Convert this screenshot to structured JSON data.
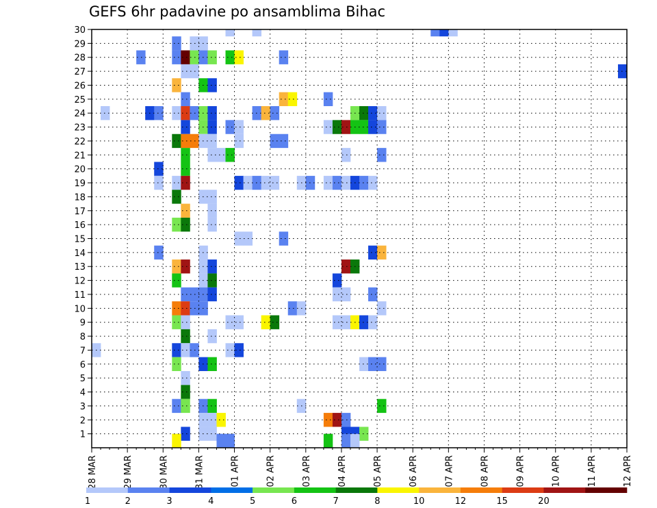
{
  "chart_data": {
    "type": "heatmap",
    "title": "GEFS 6hr padavine po ansamblima Bihac",
    "xlabel": "",
    "ylabel": "",
    "x_ticks": [
      "28 MAR",
      "29 MAR",
      "30 MAR",
      "31 MAR",
      "01 APR",
      "02 APR",
      "03 APR",
      "04 APR",
      "05 APR",
      "06 APR",
      "07 APR",
      "08 APR",
      "09 APR",
      "10 APR",
      "11 APR",
      "12 APR"
    ],
    "y_ticks": [
      1,
      2,
      3,
      4,
      5,
      6,
      7,
      8,
      9,
      10,
      11,
      12,
      13,
      14,
      15,
      16,
      17,
      18,
      19,
      20,
      21,
      22,
      23,
      24,
      25,
      26,
      27,
      28,
      29,
      30
    ],
    "x_range_days": [
      0,
      15
    ],
    "y_range": [
      0,
      30
    ],
    "grid": true,
    "x_step_hours": 6,
    "colorbar": {
      "labels": [
        "1",
        "2",
        "3",
        "4",
        "5",
        "6",
        "7",
        "8",
        "10",
        "12",
        "15",
        "20"
      ],
      "colors": [
        "#b4c8fa",
        "#5a82f0",
        "#1446dc",
        "#006ee6",
        "#78e650",
        "#14c314",
        "#0a780a",
        "#faf500",
        "#fab43c",
        "#f57d0a",
        "#dc3c14",
        "#a01414",
        "#640000"
      ]
    },
    "cells": [
      {
        "m": 30,
        "s": [
          [
            15,
            0
          ],
          [
            18,
            0
          ]
        ]
      },
      {
        "m": 30,
        "s": [
          [
            38,
            1
          ],
          [
            39,
            2
          ],
          [
            40,
            0
          ]
        ]
      },
      {
        "m": 29,
        "s": [
          [
            9,
            1
          ],
          [
            11,
            0
          ],
          [
            12,
            0
          ]
        ]
      },
      {
        "m": 28,
        "s": [
          [
            5,
            1
          ],
          [
            9,
            1
          ],
          [
            10,
            12
          ],
          [
            11,
            4
          ],
          [
            12,
            1
          ],
          [
            13,
            4
          ],
          [
            15,
            5
          ],
          [
            16,
            7
          ],
          [
            21,
            1
          ]
        ]
      },
      {
        "m": 27,
        "s": [
          [
            10,
            0
          ],
          [
            11,
            0
          ],
          [
            59,
            2
          ]
        ]
      },
      {
        "m": 26,
        "s": [
          [
            9,
            8
          ],
          [
            12,
            5
          ],
          [
            13,
            2
          ]
        ]
      },
      {
        "m": 25,
        "s": [
          [
            10,
            1
          ],
          [
            21,
            8
          ],
          [
            22,
            7
          ],
          [
            26,
            1
          ]
        ]
      },
      {
        "m": 24,
        "s": [
          [
            1,
            0
          ],
          [
            6,
            2
          ],
          [
            7,
            1
          ],
          [
            9,
            0
          ],
          [
            10,
            10
          ],
          [
            11,
            1
          ],
          [
            12,
            4
          ],
          [
            13,
            2
          ],
          [
            18,
            1
          ],
          [
            19,
            8
          ],
          [
            20,
            1
          ],
          [
            29,
            4
          ],
          [
            30,
            6
          ],
          [
            31,
            2
          ],
          [
            32,
            0
          ]
        ]
      },
      {
        "m": 23,
        "s": [
          [
            10,
            2
          ],
          [
            12,
            4
          ],
          [
            13,
            2
          ],
          [
            15,
            1
          ],
          [
            16,
            0
          ],
          [
            26,
            0
          ],
          [
            27,
            6
          ],
          [
            28,
            11
          ],
          [
            29,
            5
          ],
          [
            30,
            5
          ],
          [
            31,
            2
          ],
          [
            32,
            1
          ]
        ]
      },
      {
        "m": 22,
        "s": [
          [
            9,
            6
          ],
          [
            10,
            9
          ],
          [
            11,
            9
          ],
          [
            12,
            0
          ],
          [
            13,
            0
          ],
          [
            16,
            0
          ],
          [
            20,
            1
          ],
          [
            21,
            1
          ]
        ]
      },
      {
        "m": 21,
        "s": [
          [
            10,
            5
          ],
          [
            13,
            0
          ],
          [
            14,
            0
          ],
          [
            15,
            5
          ],
          [
            28,
            0
          ],
          [
            32,
            1
          ]
        ]
      },
      {
        "m": 20,
        "s": [
          [
            7,
            2
          ],
          [
            10,
            5
          ]
        ]
      },
      {
        "m": 19,
        "s": [
          [
            7,
            0
          ],
          [
            9,
            0
          ],
          [
            10,
            11
          ],
          [
            16,
            2
          ],
          [
            17,
            0
          ],
          [
            18,
            1
          ],
          [
            19,
            0
          ],
          [
            20,
            0
          ],
          [
            23,
            0
          ],
          [
            24,
            1
          ],
          [
            26,
            0
          ],
          [
            27,
            1
          ],
          [
            28,
            0
          ],
          [
            29,
            2
          ],
          [
            30,
            1
          ],
          [
            31,
            0
          ]
        ]
      },
      {
        "m": 18,
        "s": [
          [
            9,
            6
          ],
          [
            12,
            0
          ],
          [
            13,
            0
          ]
        ]
      },
      {
        "m": 17,
        "s": [
          [
            10,
            8
          ],
          [
            13,
            0
          ]
        ]
      },
      {
        "m": 16,
        "s": [
          [
            9,
            4
          ],
          [
            10,
            6
          ],
          [
            13,
            0
          ]
        ]
      },
      {
        "m": 15,
        "s": [
          [
            16,
            0
          ],
          [
            17,
            0
          ],
          [
            21,
            1
          ]
        ]
      },
      {
        "m": 14,
        "s": [
          [
            7,
            1
          ],
          [
            12,
            0
          ],
          [
            31,
            2
          ],
          [
            32,
            8
          ]
        ]
      },
      {
        "m": 13,
        "s": [
          [
            9,
            8
          ],
          [
            10,
            11
          ],
          [
            12,
            0
          ],
          [
            13,
            2
          ],
          [
            28,
            11
          ],
          [
            29,
            6
          ]
        ]
      },
      {
        "m": 12,
        "s": [
          [
            9,
            5
          ],
          [
            12,
            0
          ],
          [
            13,
            6
          ],
          [
            27,
            2
          ]
        ]
      },
      {
        "m": 11,
        "s": [
          [
            10,
            1
          ],
          [
            11,
            1
          ],
          [
            12,
            1
          ],
          [
            13,
            2
          ],
          [
            27,
            0
          ],
          [
            28,
            0
          ],
          [
            31,
            1
          ]
        ]
      },
      {
        "m": 10,
        "s": [
          [
            9,
            9
          ],
          [
            10,
            10
          ],
          [
            11,
            1
          ],
          [
            12,
            1
          ],
          [
            22,
            1
          ],
          [
            23,
            0
          ],
          [
            32,
            0
          ]
        ]
      },
      {
        "m": 9,
        "s": [
          [
            9,
            4
          ],
          [
            10,
            0
          ],
          [
            15,
            0
          ],
          [
            16,
            0
          ],
          [
            19,
            7
          ],
          [
            20,
            6
          ],
          [
            27,
            0
          ],
          [
            28,
            0
          ],
          [
            29,
            7
          ],
          [
            30,
            2
          ],
          [
            31,
            0
          ]
        ]
      },
      {
        "m": 8,
        "s": [
          [
            10,
            6
          ],
          [
            13,
            0
          ]
        ]
      },
      {
        "m": 7,
        "s": [
          [
            0,
            0
          ],
          [
            9,
            2
          ],
          [
            10,
            0
          ],
          [
            11,
            1
          ],
          [
            15,
            0
          ],
          [
            16,
            2
          ]
        ]
      },
      {
        "m": 6,
        "s": [
          [
            9,
            4
          ],
          [
            12,
            2
          ],
          [
            13,
            5
          ],
          [
            30,
            0
          ],
          [
            31,
            1
          ],
          [
            32,
            1
          ]
        ]
      },
      {
        "m": 5,
        "s": [
          [
            10,
            0
          ]
        ]
      },
      {
        "m": 4,
        "s": [
          [
            10,
            6
          ]
        ]
      },
      {
        "m": 3,
        "s": [
          [
            9,
            1
          ],
          [
            10,
            4
          ],
          [
            12,
            1
          ],
          [
            13,
            5
          ],
          [
            23,
            0
          ],
          [
            32,
            5
          ]
        ]
      },
      {
        "m": 2,
        "s": [
          [
            12,
            0
          ],
          [
            13,
            0
          ],
          [
            14,
            7
          ],
          [
            26,
            9
          ],
          [
            27,
            11
          ],
          [
            28,
            1
          ]
        ]
      },
      {
        "m": 1,
        "s": [
          [
            10,
            2
          ],
          [
            12,
            0
          ],
          [
            13,
            0
          ],
          [
            28,
            2
          ],
          [
            29,
            2
          ],
          [
            30,
            4
          ]
        ]
      },
      {
        "m": 0.5,
        "s": [
          [
            9,
            7
          ],
          [
            14,
            1
          ],
          [
            15,
            1
          ],
          [
            26,
            5
          ],
          [
            28,
            1
          ],
          [
            29,
            0
          ]
        ]
      }
    ]
  }
}
